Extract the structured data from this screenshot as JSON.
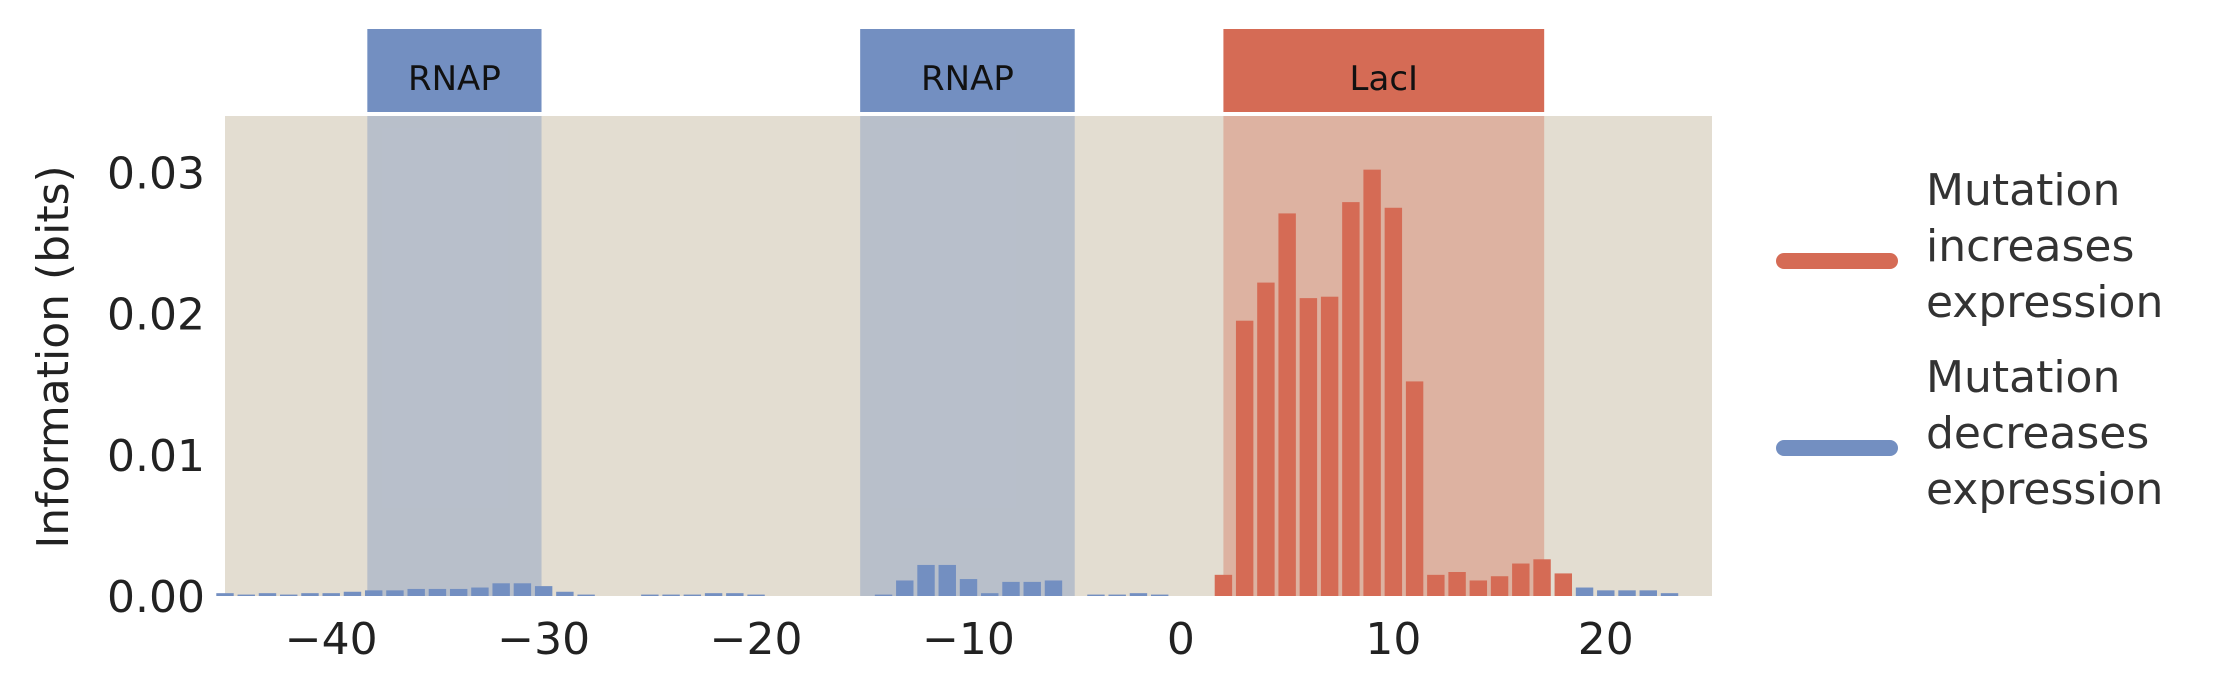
{
  "chart_data": {
    "type": "bar",
    "xlabel": "",
    "ylabel": "Information (bits)",
    "xlim": [
      -45,
      25
    ],
    "ylim": [
      0,
      0.034
    ],
    "xticks": [
      -40,
      -30,
      -20,
      -10,
      0,
      10,
      20
    ],
    "xtick_labels": [
      "−40",
      "−30",
      "−20",
      "−10",
      "0",
      "10",
      "20"
    ],
    "yticks": [
      0.0,
      0.01,
      0.02,
      0.03
    ],
    "ytick_labels": [
      "0.00",
      "0.01",
      "0.02",
      "0.03"
    ],
    "grid": false,
    "background_color": "#e3ddd1",
    "regions": [
      {
        "label": "RNAP",
        "start": -38.3,
        "end": -30.1,
        "color": "#738fc1"
      },
      {
        "label": "RNAP",
        "start": -15.1,
        "end": -5.0,
        "color": "#738fc1"
      },
      {
        "label": "LacI",
        "start": 2.0,
        "end": 17.1,
        "color": "#d56b55"
      }
    ],
    "series": [
      {
        "name": "Mutation increases expression",
        "color": "#d56b55",
        "positions": [
          2,
          3,
          4,
          5,
          6,
          7,
          8,
          9,
          10,
          11,
          12,
          13,
          14,
          15,
          16,
          17,
          18
        ],
        "values": [
          0.0015,
          0.0195,
          0.0222,
          0.0271,
          0.0211,
          0.0212,
          0.0279,
          0.0302,
          0.0275,
          0.0152,
          0.0015,
          0.0017,
          0.0011,
          0.0014,
          0.0023,
          0.0026,
          0.0016
        ]
      },
      {
        "name": "Mutation decreases expression",
        "color": "#738fc1",
        "positions": [
          -45,
          -44,
          -43,
          -42,
          -41,
          -40,
          -39,
          -38,
          -37,
          -36,
          -35,
          -34,
          -33,
          -32,
          -31,
          -30,
          -29,
          -28,
          -25,
          -24,
          -23,
          -22,
          -21,
          -20,
          -14,
          -13,
          -12,
          -11,
          -10,
          -9,
          -8,
          -7,
          -6,
          -4,
          -3,
          -2,
          -1,
          19,
          20,
          21,
          22,
          23
        ],
        "values": [
          0.0002,
          0.0001,
          0.0002,
          0.0001,
          0.0002,
          0.0002,
          0.0003,
          0.0004,
          0.0004,
          0.0005,
          0.0005,
          0.0005,
          0.0006,
          0.0009,
          0.0009,
          0.0007,
          0.0003,
          0.0001,
          0.0001,
          0.0001,
          0.0001,
          0.0002,
          0.0002,
          0.0001,
          0.0001,
          0.0011,
          0.0022,
          0.0022,
          0.0012,
          0.0002,
          0.001,
          0.001,
          0.0011,
          0.0001,
          0.0001,
          0.0002,
          0.0001,
          0.0006,
          0.0004,
          0.0004,
          0.0004,
          0.0002
        ]
      }
    ],
    "legend": {
      "position": "right",
      "entries": [
        {
          "lines": [
            "Mutation",
            "increases",
            "expression"
          ],
          "color": "#d56b55"
        },
        {
          "lines": [
            "Mutation",
            "decreases",
            "expression"
          ],
          "color": "#738fc1"
        }
      ]
    }
  }
}
